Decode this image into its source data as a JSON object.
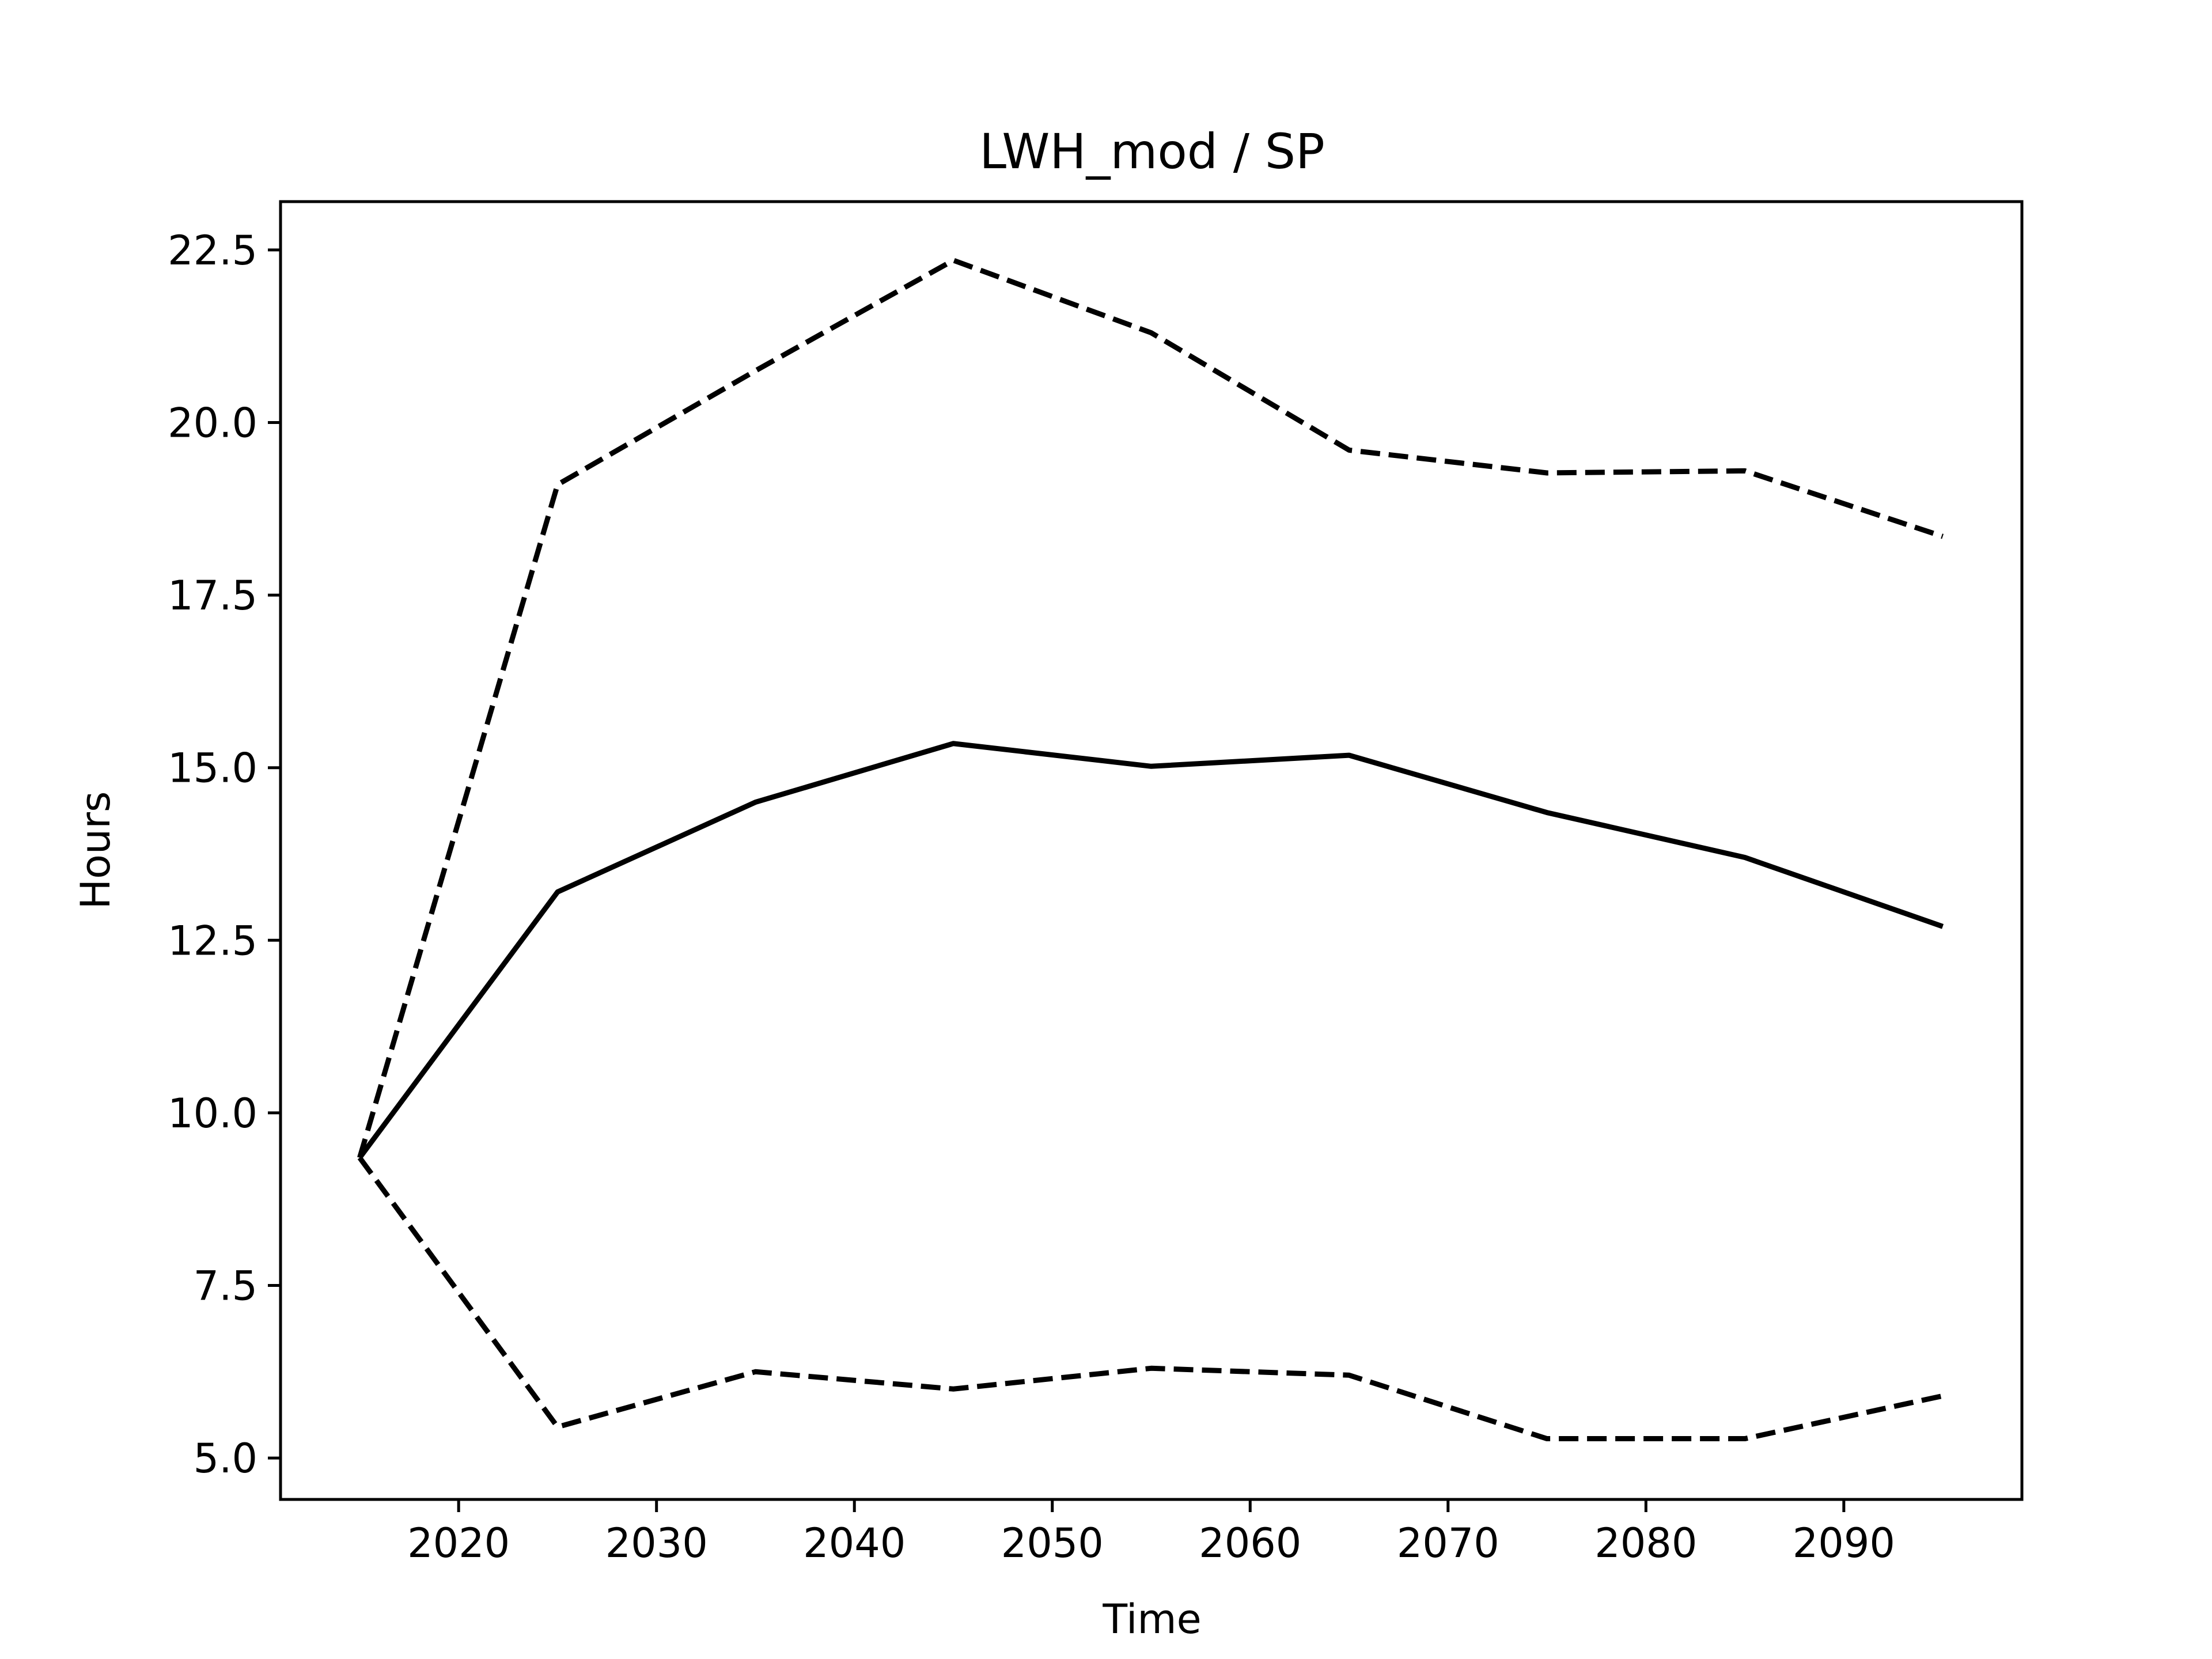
{
  "chart_data": {
    "type": "line",
    "title": "LWH_mod / SP",
    "xlabel": "Time",
    "ylabel": "Hours",
    "xlim": [
      2011,
      2099
    ],
    "ylim": [
      4.4,
      23.2
    ],
    "xticks": [
      2020,
      2030,
      2040,
      2050,
      2060,
      2070,
      2080,
      2090
    ],
    "xtick_labels": [
      "2020",
      "2030",
      "2040",
      "2050",
      "2060",
      "2070",
      "2080",
      "2090"
    ],
    "yticks": [
      5.0,
      7.5,
      10.0,
      12.5,
      15.0,
      17.5,
      20.0,
      22.5
    ],
    "ytick_labels": [
      "5.0",
      "7.5",
      "10.0",
      "12.5",
      "15.0",
      "17.5",
      "20.0",
      "22.5"
    ],
    "grid": false,
    "legend": "none",
    "x": [
      2015,
      2025,
      2035,
      2045,
      2055,
      2065,
      2075,
      2085,
      2095
    ],
    "series": [
      {
        "style": "dashed",
        "color": "#000000",
        "values": [
          9.35,
          19.1,
          20.75,
          22.35,
          21.3,
          19.6,
          19.27,
          19.3,
          18.35
        ]
      },
      {
        "style": "solid",
        "color": "#000000",
        "values": [
          9.35,
          13.2,
          14.5,
          15.35,
          15.02,
          15.18,
          14.35,
          13.7,
          12.7
        ]
      },
      {
        "style": "dashed",
        "color": "#000000",
        "values": [
          9.35,
          5.45,
          6.25,
          6.0,
          6.3,
          6.2,
          5.28,
          5.28,
          5.9
        ]
      }
    ]
  }
}
